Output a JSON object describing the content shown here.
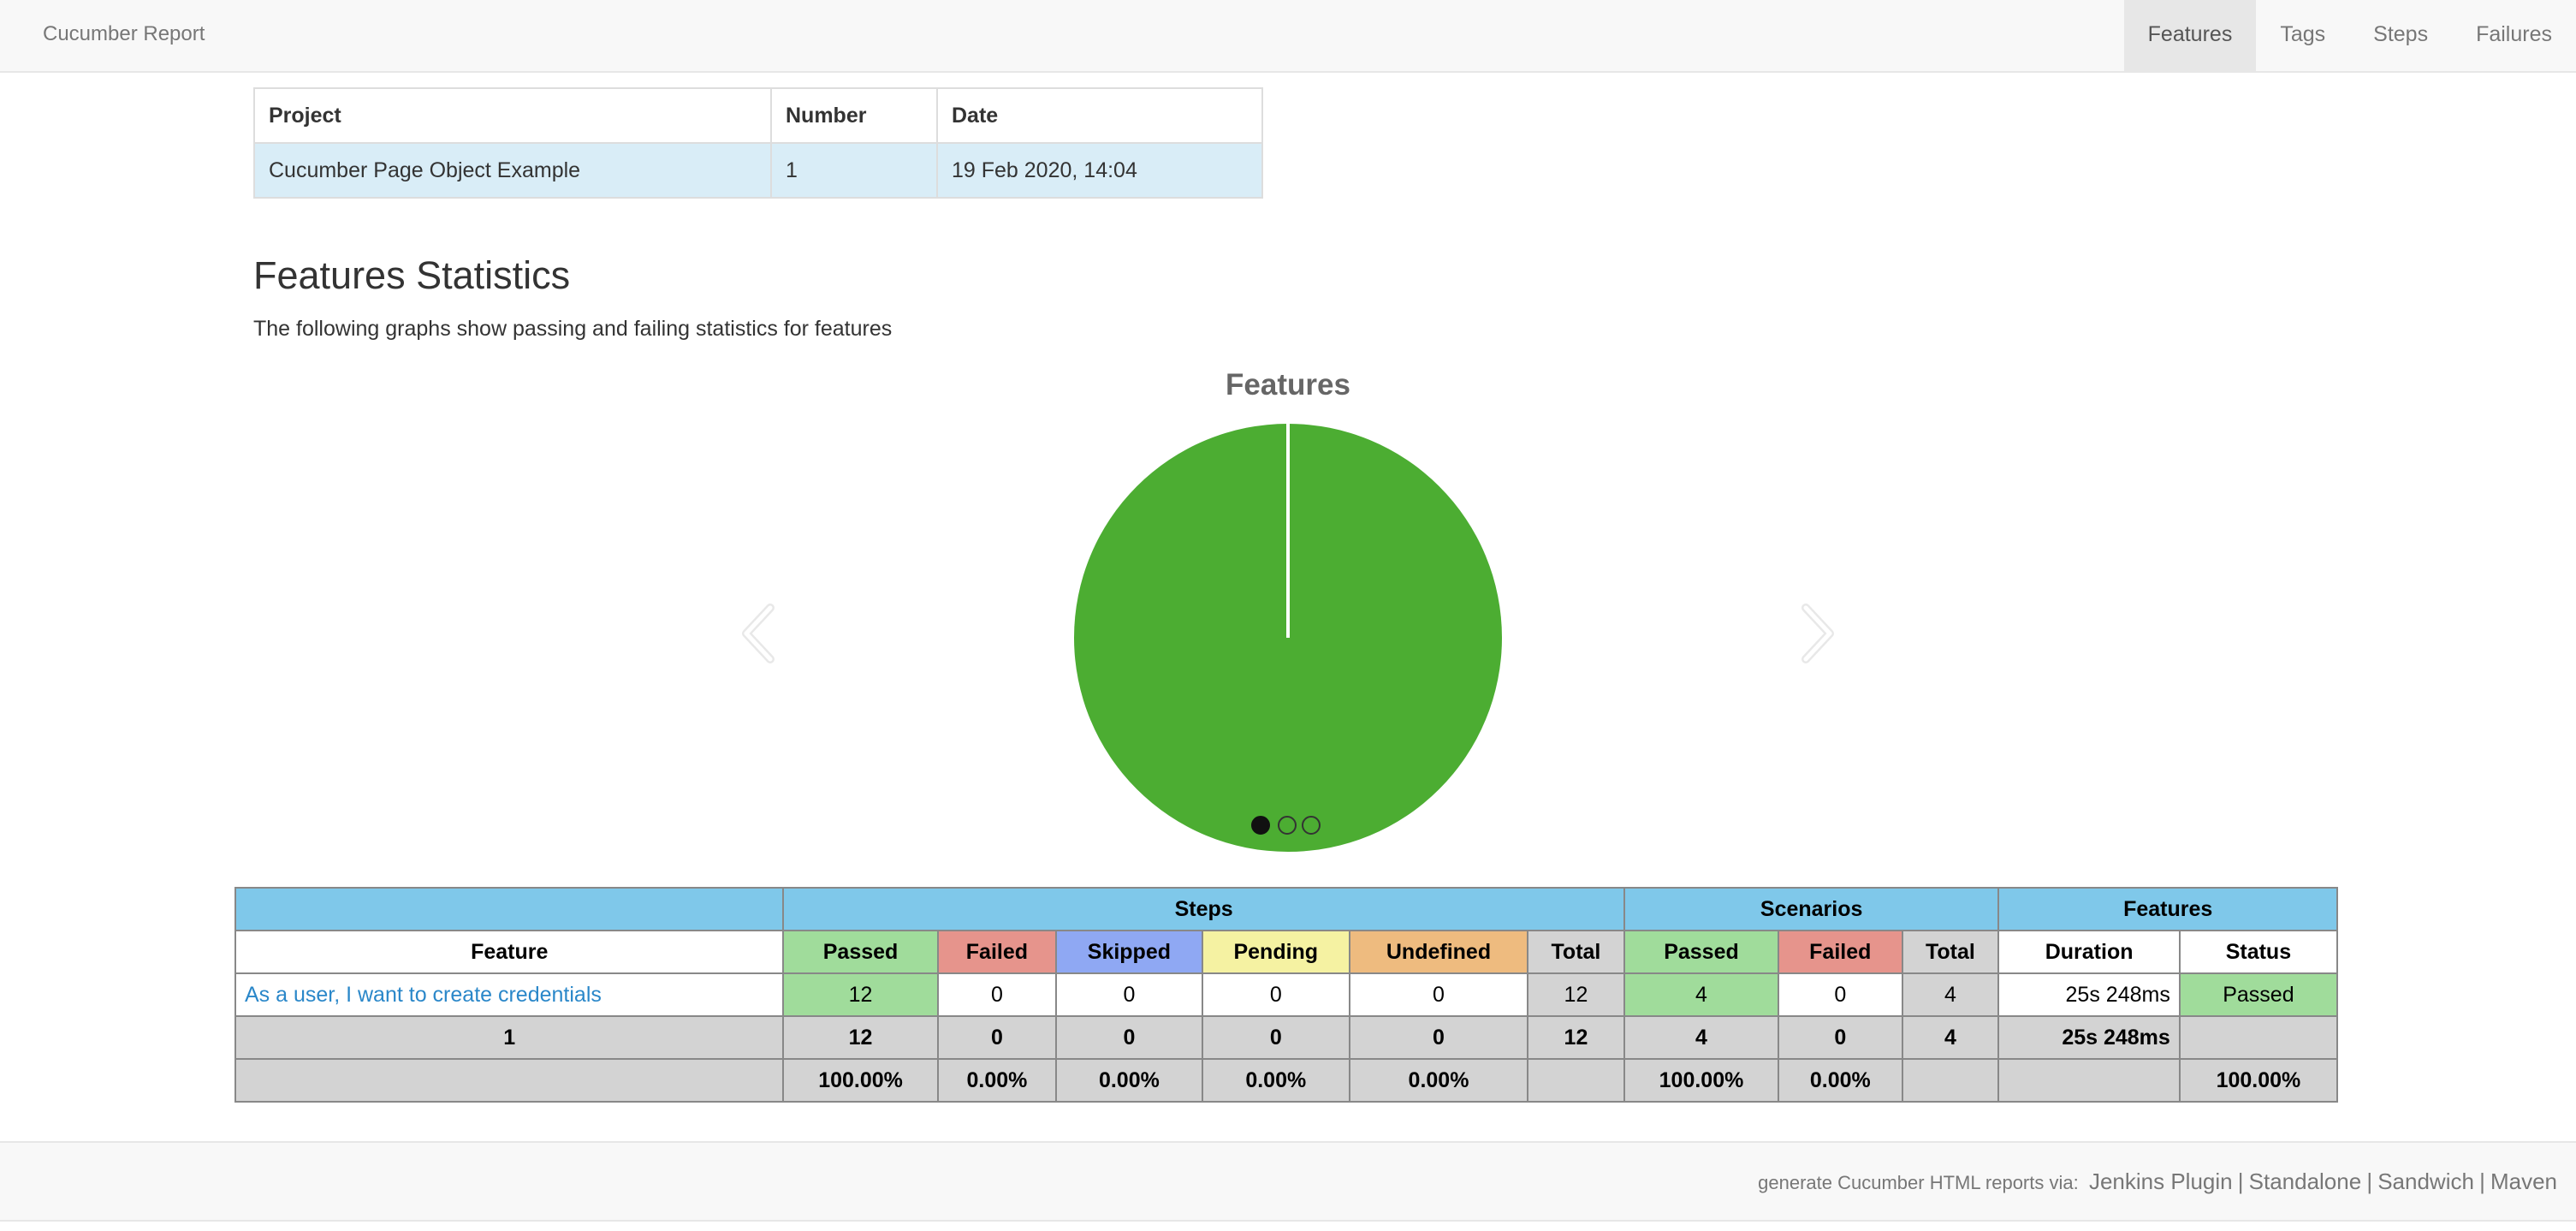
{
  "navbar": {
    "brand": "Cucumber Report",
    "items": [
      {
        "label": "Features",
        "active": true
      },
      {
        "label": "Tags",
        "active": false
      },
      {
        "label": "Steps",
        "active": false
      },
      {
        "label": "Failures",
        "active": false
      }
    ]
  },
  "project_table": {
    "headers": [
      "Project",
      "Number",
      "Date"
    ],
    "row": [
      "Cucumber Page Object Example",
      "1",
      "19 Feb 2020, 14:04"
    ]
  },
  "stats": {
    "title": "Features Statistics",
    "subtitle": "The following graphs show passing and failing statistics for features",
    "carousel": {
      "slides": 3,
      "active_index": 0
    }
  },
  "chart_data": {
    "type": "pie",
    "title": "Features",
    "categories": [
      "Passed"
    ],
    "values": [
      1
    ],
    "colors": [
      "#4cad32"
    ]
  },
  "colors": {
    "passed": "#a0dc9b",
    "failed": "#e6948c",
    "skipped": "#8fa8f3",
    "pending": "#f5f2a2",
    "undefined": "#eebb7f",
    "total": "#d3d3d3",
    "group_header": "#7fc8ea",
    "pie_passed": "#4cad32"
  },
  "stats_table": {
    "groups": {
      "steps": "Steps",
      "scenarios": "Scenarios",
      "features": "Features"
    },
    "columns": {
      "feature": "Feature",
      "steps_passed": "Passed",
      "steps_failed": "Failed",
      "steps_skipped": "Skipped",
      "steps_pending": "Pending",
      "steps_undefined": "Undefined",
      "steps_total": "Total",
      "sc_passed": "Passed",
      "sc_failed": "Failed",
      "sc_total": "Total",
      "duration": "Duration",
      "status": "Status"
    },
    "row": {
      "feature": "As a user, I want to create credentials",
      "steps_passed": "12",
      "steps_failed": "0",
      "steps_skipped": "0",
      "steps_pending": "0",
      "steps_undefined": "0",
      "steps_total": "12",
      "sc_passed": "4",
      "sc_failed": "0",
      "sc_total": "4",
      "duration": "25s 248ms",
      "status": "Passed"
    },
    "totals": {
      "feature": "1",
      "steps_passed": "12",
      "steps_failed": "0",
      "steps_skipped": "0",
      "steps_pending": "0",
      "steps_undefined": "0",
      "steps_total": "12",
      "sc_passed": "4",
      "sc_failed": "0",
      "sc_total": "4",
      "duration": "25s 248ms"
    },
    "percentages": {
      "steps_passed": "100.00%",
      "steps_failed": "0.00%",
      "steps_skipped": "0.00%",
      "steps_pending": "0.00%",
      "steps_undefined": "0.00%",
      "sc_passed": "100.00%",
      "sc_failed": "0.00%",
      "status": "100.00%"
    }
  },
  "footer": {
    "prefix": "generate Cucumber HTML reports via:",
    "links": [
      "Jenkins Plugin",
      "Standalone",
      "Sandwich",
      "Maven"
    ],
    "separator": "|"
  }
}
